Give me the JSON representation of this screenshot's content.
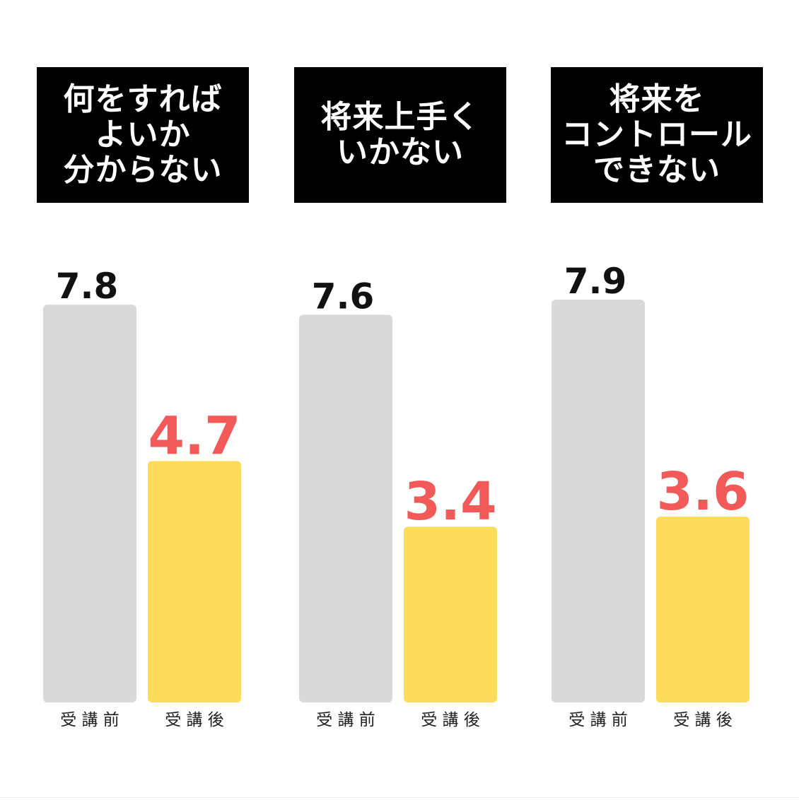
{
  "colors": {
    "before_bar": "#d9d9d9",
    "after_bar": "#fddc5c",
    "before_label": "#111111",
    "after_label": "#f25a5a",
    "title_bg": "#000000",
    "title_text": "#ffffff"
  },
  "chart_data": [
    {
      "type": "bar",
      "title_lines": [
        "何をすれば",
        "よいか",
        "分からない"
      ],
      "categories": [
        "受 講 前",
        "受 講 後"
      ],
      "values": [
        7.8,
        4.7
      ]
    },
    {
      "type": "bar",
      "title_lines": [
        "将来上手く",
        "いかない"
      ],
      "categories": [
        "受 講 前",
        "受 講 後"
      ],
      "values": [
        7.6,
        3.4
      ]
    },
    {
      "type": "bar",
      "title_lines": [
        "将来を",
        "コントロール",
        "できない"
      ],
      "categories": [
        "受 講 前",
        "受 講 後"
      ],
      "values": [
        7.9,
        3.6
      ]
    }
  ]
}
